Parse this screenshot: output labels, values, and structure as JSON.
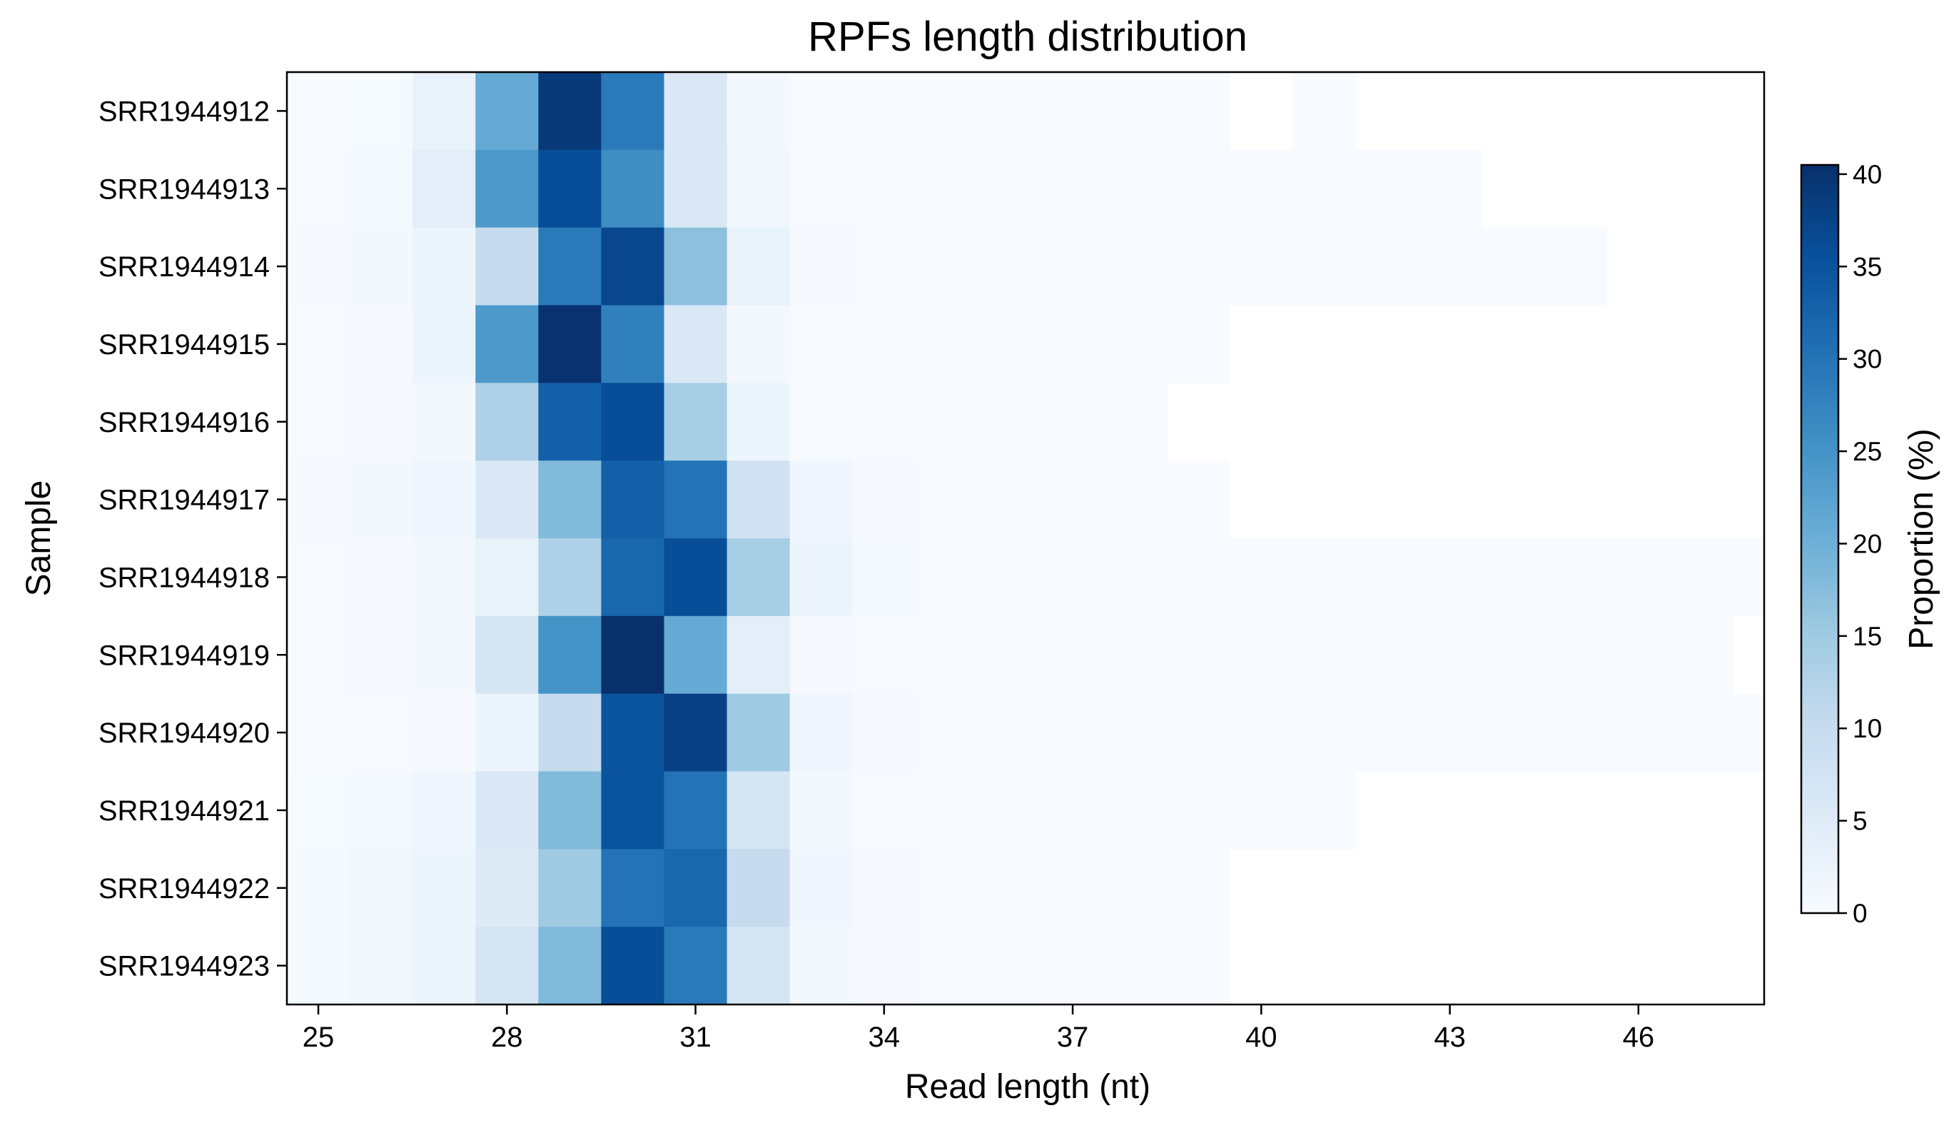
{
  "chart_data": {
    "type": "heatmap",
    "title": "RPFs length distribution",
    "xlabel": "Read length (nt)",
    "ylabel": "Sample",
    "colorbar_label": "Proportion (%)",
    "colormap": "Blues",
    "x_tick_labels": [
      "25",
      "28",
      "31",
      "34",
      "37",
      "40",
      "43",
      "46"
    ],
    "colorbar_ticks": [
      "0",
      "5",
      "10",
      "15",
      "20",
      "25",
      "30",
      "35",
      "40"
    ],
    "vmin": 0,
    "vmax": 40.5,
    "x": [
      25,
      26,
      27,
      28,
      29,
      30,
      31,
      32,
      33,
      34,
      35,
      36,
      37,
      38,
      39,
      40,
      41,
      42,
      43,
      44,
      45,
      46,
      47,
      48
    ],
    "samples": [
      "SRR1944912",
      "SRR1944913",
      "SRR1944914",
      "SRR1944915",
      "SRR1944916",
      "SRR1944917",
      "SRR1944918",
      "SRR1944919",
      "SRR1944920",
      "SRR1944921",
      "SRR1944922",
      "SRR1944923"
    ],
    "values": [
      [
        0.2,
        0.4,
        3.0,
        21.0,
        39.0,
        29.0,
        6.0,
        1.0,
        0.2,
        0.1,
        0.1,
        0.1,
        0.05,
        0.05,
        0.03,
        null,
        0.02,
        null,
        null,
        null,
        null,
        null,
        null,
        null
      ],
      [
        0.3,
        0.6,
        4.0,
        24.0,
        36.0,
        26.0,
        6.0,
        1.2,
        0.3,
        0.2,
        0.1,
        0.1,
        0.05,
        0.05,
        0.03,
        0.02,
        0.02,
        0.01,
        0.01,
        null,
        null,
        null,
        null,
        null
      ],
      [
        0.5,
        0.8,
        2.0,
        10.0,
        29.0,
        37.0,
        17.0,
        3.0,
        0.5,
        0.3,
        0.2,
        0.1,
        0.1,
        0.05,
        0.05,
        0.03,
        0.03,
        0.02,
        0.02,
        0.01,
        0.01,
        null,
        null,
        null
      ],
      [
        0.3,
        0.5,
        2.0,
        24.0,
        40.0,
        28.0,
        6.0,
        1.0,
        0.2,
        0.1,
        0.1,
        0.05,
        0.05,
        0.03,
        0.02,
        null,
        null,
        null,
        null,
        null,
        null,
        null,
        null,
        null
      ],
      [
        0.3,
        0.5,
        1.0,
        13.0,
        33.0,
        36.0,
        14.0,
        2.0,
        0.3,
        0.2,
        0.1,
        0.05,
        0.05,
        0.03,
        null,
        null,
        null,
        null,
        null,
        null,
        null,
        null,
        null,
        null
      ],
      [
        0.5,
        0.8,
        1.5,
        6.0,
        18.0,
        33.0,
        30.0,
        8.0,
        1.5,
        0.5,
        0.3,
        0.2,
        0.1,
        0.05,
        0.03,
        null,
        null,
        null,
        null,
        null,
        null,
        null,
        null,
        null
      ],
      [
        0.3,
        0.5,
        1.0,
        3.0,
        13.0,
        32.0,
        36.0,
        14.0,
        2.0,
        0.6,
        0.3,
        0.2,
        0.1,
        0.05,
        0.05,
        0.03,
        0.03,
        0.02,
        0.02,
        0.02,
        0.01,
        0.01,
        0.01,
        0.01
      ],
      [
        0.3,
        0.5,
        1.0,
        7.0,
        25.0,
        40.5,
        21.0,
        4.0,
        0.5,
        0.3,
        0.2,
        0.1,
        0.05,
        0.05,
        0.03,
        0.03,
        0.02,
        0.02,
        0.02,
        0.01,
        0.01,
        0.01,
        0.01,
        null
      ],
      [
        0.2,
        0.3,
        0.5,
        2.0,
        10.0,
        35.0,
        38.0,
        15.0,
        1.5,
        0.5,
        0.3,
        0.2,
        0.1,
        0.05,
        0.05,
        0.03,
        0.03,
        0.02,
        0.02,
        0.02,
        0.01,
        0.01,
        0.01,
        0.01
      ],
      [
        0.4,
        0.7,
        1.5,
        6.0,
        18.0,
        35.0,
        30.0,
        7.0,
        1.0,
        0.3,
        0.2,
        0.1,
        0.05,
        0.05,
        0.03,
        0.02,
        0.02,
        null,
        null,
        null,
        null,
        null,
        null,
        null
      ],
      [
        0.6,
        1.2,
        2.0,
        5.0,
        15.0,
        30.0,
        32.0,
        10.0,
        1.5,
        0.5,
        0.3,
        0.2,
        0.1,
        0.05,
        0.03,
        null,
        null,
        null,
        null,
        null,
        null,
        null,
        null,
        null
      ],
      [
        0.6,
        1.2,
        2.0,
        7.0,
        18.0,
        36.0,
        29.0,
        7.0,
        1.0,
        0.5,
        0.3,
        0.2,
        0.1,
        0.05,
        0.03,
        null,
        null,
        null,
        null,
        null,
        null,
        null,
        null,
        null
      ]
    ]
  }
}
